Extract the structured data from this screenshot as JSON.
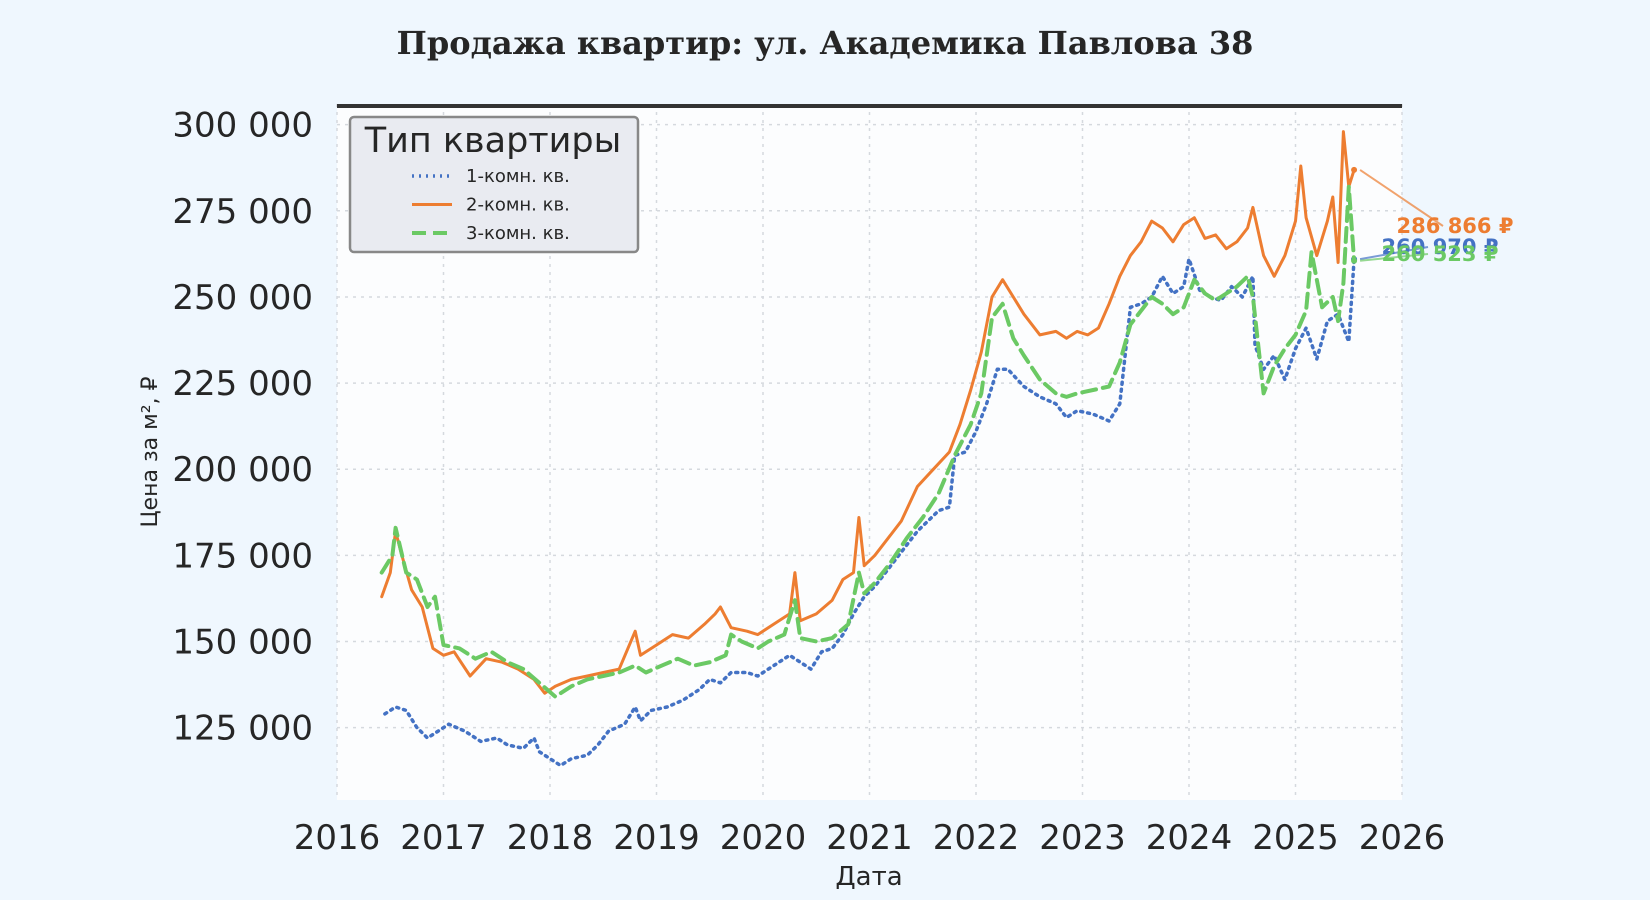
{
  "chart_data": {
    "type": "line",
    "title": "Продажа квартир: ул. Академика Павлова 38",
    "xlabel": "Дата",
    "ylabel": "Цена за м², ₽",
    "xlim": [
      2016.0,
      2026.0
    ],
    "ylim": [
      104000,
      306000
    ],
    "x_ticks": [
      "2016",
      "2017",
      "2018",
      "2019",
      "2020",
      "2021",
      "2022",
      "2023",
      "2024",
      "2025",
      "2026"
    ],
    "y_ticks": [
      "125 000",
      "150 000",
      "175 000",
      "200 000",
      "225 000",
      "250 000",
      "275 000",
      "300 000"
    ],
    "y_tick_values": [
      125000,
      150000,
      175000,
      200000,
      225000,
      250000,
      275000,
      300000
    ],
    "grid": true,
    "legend": {
      "title": "Тип квартиры",
      "position": "top-left"
    },
    "series": [
      {
        "name": "1-комн. кв.",
        "color": "#4472c4",
        "style": "dotted",
        "end_label": "260 970 ₽",
        "points": [
          [
            2016.45,
            129000
          ],
          [
            2016.55,
            131000
          ],
          [
            2016.65,
            130000
          ],
          [
            2016.75,
            125000
          ],
          [
            2016.85,
            122000
          ],
          [
            2016.95,
            124000
          ],
          [
            2017.05,
            126000
          ],
          [
            2017.2,
            124000
          ],
          [
            2017.35,
            121000
          ],
          [
            2017.5,
            122000
          ],
          [
            2017.6,
            120000
          ],
          [
            2017.75,
            119000
          ],
          [
            2017.85,
            122000
          ],
          [
            2017.9,
            118000
          ],
          [
            2018.0,
            116000
          ],
          [
            2018.1,
            114000
          ],
          [
            2018.2,
            116000
          ],
          [
            2018.35,
            117000
          ],
          [
            2018.45,
            120000
          ],
          [
            2018.55,
            124000
          ],
          [
            2018.7,
            126000
          ],
          [
            2018.8,
            131000
          ],
          [
            2018.85,
            127000
          ],
          [
            2018.95,
            130000
          ],
          [
            2019.1,
            131000
          ],
          [
            2019.25,
            133000
          ],
          [
            2019.4,
            136000
          ],
          [
            2019.5,
            139000
          ],
          [
            2019.6,
            138000
          ],
          [
            2019.7,
            141000
          ],
          [
            2019.85,
            141000
          ],
          [
            2019.95,
            140000
          ],
          [
            2020.05,
            142000
          ],
          [
            2020.15,
            144000
          ],
          [
            2020.25,
            146000
          ],
          [
            2020.35,
            144000
          ],
          [
            2020.45,
            142000
          ],
          [
            2020.55,
            147000
          ],
          [
            2020.65,
            148000
          ],
          [
            2020.75,
            152000
          ],
          [
            2020.85,
            158000
          ],
          [
            2020.95,
            163000
          ],
          [
            2021.05,
            166000
          ],
          [
            2021.15,
            170000
          ],
          [
            2021.3,
            176000
          ],
          [
            2021.45,
            182000
          ],
          [
            2021.55,
            185000
          ],
          [
            2021.65,
            188000
          ],
          [
            2021.75,
            189000
          ],
          [
            2021.8,
            204000
          ],
          [
            2021.9,
            205000
          ],
          [
            2022.0,
            211000
          ],
          [
            2022.1,
            219000
          ],
          [
            2022.2,
            229000
          ],
          [
            2022.3,
            229000
          ],
          [
            2022.45,
            224000
          ],
          [
            2022.6,
            221000
          ],
          [
            2022.75,
            219000
          ],
          [
            2022.85,
            215000
          ],
          [
            2022.95,
            217000
          ],
          [
            2023.1,
            216000
          ],
          [
            2023.25,
            214000
          ],
          [
            2023.35,
            219000
          ],
          [
            2023.45,
            247000
          ],
          [
            2023.55,
            248000
          ],
          [
            2023.65,
            250000
          ],
          [
            2023.75,
            256000
          ],
          [
            2023.85,
            251000
          ],
          [
            2023.95,
            253000
          ],
          [
            2024.0,
            261000
          ],
          [
            2024.1,
            252000
          ],
          [
            2024.2,
            250000
          ],
          [
            2024.3,
            249000
          ],
          [
            2024.4,
            253000
          ],
          [
            2024.5,
            250000
          ],
          [
            2024.6,
            256000
          ],
          [
            2024.62,
            236000
          ],
          [
            2024.7,
            229000
          ],
          [
            2024.8,
            233000
          ],
          [
            2024.9,
            226000
          ],
          [
            2025.0,
            235000
          ],
          [
            2025.1,
            241000
          ],
          [
            2025.2,
            232000
          ],
          [
            2025.3,
            243000
          ],
          [
            2025.4,
            245000
          ],
          [
            2025.45,
            241000
          ],
          [
            2025.5,
            237000
          ],
          [
            2025.55,
            260970
          ]
        ]
      },
      {
        "name": "2-комн. кв.",
        "color": "#ed7d31",
        "style": "solid",
        "end_label": "286 866 ₽",
        "points": [
          [
            2016.42,
            163000
          ],
          [
            2016.5,
            170000
          ],
          [
            2016.55,
            182000
          ],
          [
            2016.6,
            176000
          ],
          [
            2016.7,
            165000
          ],
          [
            2016.8,
            160000
          ],
          [
            2016.9,
            148000
          ],
          [
            2017.0,
            146000
          ],
          [
            2017.1,
            147000
          ],
          [
            2017.25,
            140000
          ],
          [
            2017.4,
            145000
          ],
          [
            2017.55,
            144000
          ],
          [
            2017.7,
            142000
          ],
          [
            2017.85,
            139000
          ],
          [
            2017.95,
            135000
          ],
          [
            2018.05,
            137000
          ],
          [
            2018.2,
            139000
          ],
          [
            2018.35,
            140000
          ],
          [
            2018.5,
            141000
          ],
          [
            2018.65,
            142000
          ],
          [
            2018.8,
            153000
          ],
          [
            2018.85,
            146000
          ],
          [
            2019.0,
            149000
          ],
          [
            2019.15,
            152000
          ],
          [
            2019.3,
            151000
          ],
          [
            2019.45,
            155000
          ],
          [
            2019.55,
            158000
          ],
          [
            2019.6,
            160000
          ],
          [
            2019.7,
            154000
          ],
          [
            2019.85,
            153000
          ],
          [
            2019.95,
            152000
          ],
          [
            2020.1,
            155000
          ],
          [
            2020.25,
            158000
          ],
          [
            2020.3,
            170000
          ],
          [
            2020.35,
            156000
          ],
          [
            2020.5,
            158000
          ],
          [
            2020.65,
            162000
          ],
          [
            2020.75,
            168000
          ],
          [
            2020.85,
            170000
          ],
          [
            2020.9,
            186000
          ],
          [
            2020.95,
            172000
          ],
          [
            2021.05,
            175000
          ],
          [
            2021.15,
            179000
          ],
          [
            2021.3,
            185000
          ],
          [
            2021.45,
            195000
          ],
          [
            2021.6,
            200000
          ],
          [
            2021.75,
            205000
          ],
          [
            2021.85,
            213000
          ],
          [
            2021.95,
            223000
          ],
          [
            2022.05,
            234000
          ],
          [
            2022.15,
            250000
          ],
          [
            2022.25,
            255000
          ],
          [
            2022.35,
            250000
          ],
          [
            2022.45,
            245000
          ],
          [
            2022.6,
            239000
          ],
          [
            2022.75,
            240000
          ],
          [
            2022.85,
            238000
          ],
          [
            2022.95,
            240000
          ],
          [
            2023.05,
            239000
          ],
          [
            2023.15,
            241000
          ],
          [
            2023.25,
            248000
          ],
          [
            2023.35,
            256000
          ],
          [
            2023.45,
            262000
          ],
          [
            2023.55,
            266000
          ],
          [
            2023.65,
            272000
          ],
          [
            2023.75,
            270000
          ],
          [
            2023.85,
            266000
          ],
          [
            2023.95,
            271000
          ],
          [
            2024.05,
            273000
          ],
          [
            2024.15,
            267000
          ],
          [
            2024.25,
            268000
          ],
          [
            2024.35,
            264000
          ],
          [
            2024.45,
            266000
          ],
          [
            2024.55,
            270000
          ],
          [
            2024.6,
            276000
          ],
          [
            2024.7,
            262000
          ],
          [
            2024.8,
            256000
          ],
          [
            2024.9,
            262000
          ],
          [
            2025.0,
            272000
          ],
          [
            2025.05,
            288000
          ],
          [
            2025.1,
            273000
          ],
          [
            2025.2,
            262000
          ],
          [
            2025.3,
            272000
          ],
          [
            2025.35,
            279000
          ],
          [
            2025.4,
            260000
          ],
          [
            2025.45,
            298000
          ],
          [
            2025.5,
            282000
          ],
          [
            2025.55,
            286866
          ]
        ]
      },
      {
        "name": "3-комн. кв.",
        "color": "#6bc964",
        "style": "dashed",
        "end_label": "260 523 ₽",
        "points": [
          [
            2016.42,
            170000
          ],
          [
            2016.52,
            175000
          ],
          [
            2016.55,
            183000
          ],
          [
            2016.65,
            170000
          ],
          [
            2016.75,
            168000
          ],
          [
            2016.85,
            160000
          ],
          [
            2016.92,
            163000
          ],
          [
            2017.0,
            149000
          ],
          [
            2017.15,
            148000
          ],
          [
            2017.3,
            145000
          ],
          [
            2017.45,
            147000
          ],
          [
            2017.6,
            144000
          ],
          [
            2017.75,
            142000
          ],
          [
            2017.9,
            138000
          ],
          [
            2018.05,
            134000
          ],
          [
            2018.2,
            137000
          ],
          [
            2018.35,
            139000
          ],
          [
            2018.5,
            140000
          ],
          [
            2018.65,
            141000
          ],
          [
            2018.8,
            143000
          ],
          [
            2018.9,
            141000
          ],
          [
            2019.05,
            143000
          ],
          [
            2019.2,
            145000
          ],
          [
            2019.35,
            143000
          ],
          [
            2019.5,
            144000
          ],
          [
            2019.65,
            146000
          ],
          [
            2019.7,
            152000
          ],
          [
            2019.8,
            150000
          ],
          [
            2019.95,
            148000
          ],
          [
            2020.05,
            150000
          ],
          [
            2020.2,
            152000
          ],
          [
            2020.3,
            162000
          ],
          [
            2020.35,
            151000
          ],
          [
            2020.5,
            150000
          ],
          [
            2020.65,
            151000
          ],
          [
            2020.8,
            155000
          ],
          [
            2020.9,
            170000
          ],
          [
            2020.95,
            164000
          ],
          [
            2021.05,
            167000
          ],
          [
            2021.2,
            173000
          ],
          [
            2021.35,
            180000
          ],
          [
            2021.5,
            186000
          ],
          [
            2021.65,
            193000
          ],
          [
            2021.8,
            204000
          ],
          [
            2021.95,
            213000
          ],
          [
            2022.05,
            222000
          ],
          [
            2022.15,
            244000
          ],
          [
            2022.25,
            248000
          ],
          [
            2022.35,
            238000
          ],
          [
            2022.45,
            233000
          ],
          [
            2022.6,
            226000
          ],
          [
            2022.75,
            222000
          ],
          [
            2022.85,
            221000
          ],
          [
            2022.95,
            222000
          ],
          [
            2023.1,
            223000
          ],
          [
            2023.25,
            224000
          ],
          [
            2023.35,
            231000
          ],
          [
            2023.45,
            242000
          ],
          [
            2023.55,
            246000
          ],
          [
            2023.65,
            250000
          ],
          [
            2023.75,
            248000
          ],
          [
            2023.85,
            245000
          ],
          [
            2023.95,
            247000
          ],
          [
            2024.05,
            255000
          ],
          [
            2024.15,
            251000
          ],
          [
            2024.25,
            249000
          ],
          [
            2024.35,
            251000
          ],
          [
            2024.45,
            253000
          ],
          [
            2024.55,
            256000
          ],
          [
            2024.6,
            250000
          ],
          [
            2024.7,
            222000
          ],
          [
            2024.8,
            230000
          ],
          [
            2024.9,
            235000
          ],
          [
            2025.0,
            239000
          ],
          [
            2025.1,
            246000
          ],
          [
            2025.15,
            263000
          ],
          [
            2025.25,
            247000
          ],
          [
            2025.35,
            250000
          ],
          [
            2025.4,
            243000
          ],
          [
            2025.45,
            254000
          ],
          [
            2025.5,
            282000
          ],
          [
            2025.55,
            260523
          ]
        ]
      }
    ]
  }
}
